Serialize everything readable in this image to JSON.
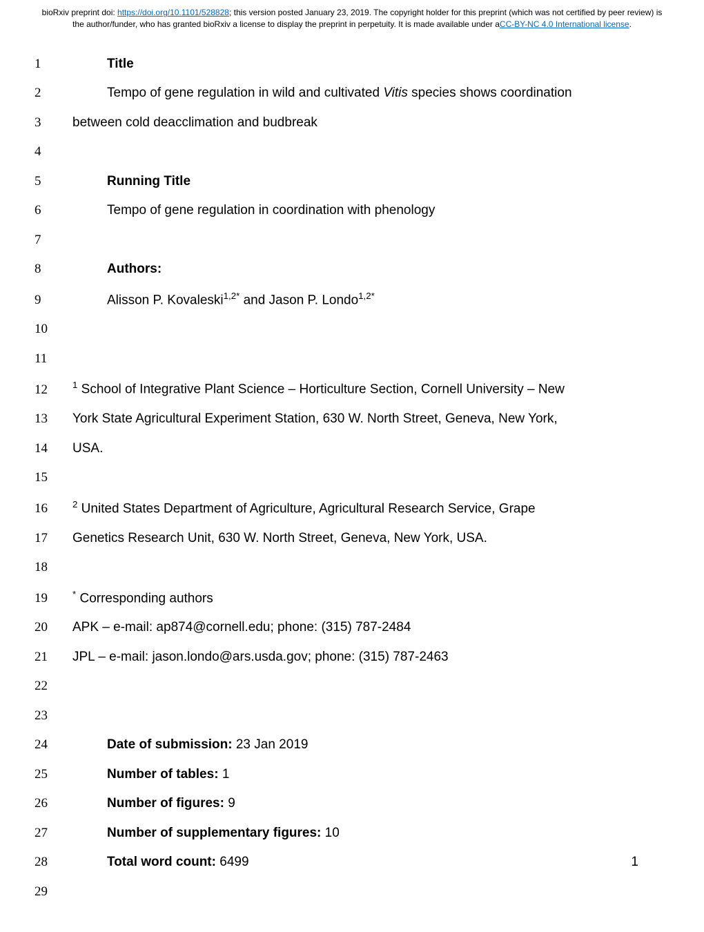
{
  "header": {
    "prefix": "bioRxiv preprint doi: ",
    "doi_url": "https://doi.org/10.1101/528828",
    "middle": "; this version posted January 23, 2019. The copyright holder for this preprint (which was not certified by peer review) is the author/funder, who has granted bioRxiv a license to display the preprint in perpetuity. It is made available under ",
    "license_prefix": "a",
    "license_text": "CC-BY-NC 4.0 International license",
    "license_suffix": "."
  },
  "lines": {
    "l1": "Title",
    "l2a": "Tempo of gene regulation in wild and cultivated ",
    "l2b": "Vitis",
    "l2c": " species shows coordination",
    "l3": "between cold deacclimation and budbreak",
    "l5": "Running Title",
    "l6": "Tempo of gene regulation in coordination with phenology",
    "l8": "Authors:",
    "l9a": "Alisson P. Kovaleski",
    "l9sup1": "1,2*",
    "l9b": " and Jason P. Londo",
    "l9sup2": "1,2*",
    "l12sup": "1",
    "l12": " School of Integrative Plant Science – Horticulture Section, Cornell University – New",
    "l13": "York State Agricultural Experiment Station, 630 W. North Street, Geneva, New York,",
    "l14": "USA.",
    "l16sup": "2",
    "l16": " United States Department of Agriculture, Agricultural Research Service, Grape",
    "l17": "Genetics Research Unit, 630 W. North Street, Geneva, New York, USA.",
    "l19sup": "*",
    "l19": " Corresponding authors",
    "l20": "APK – e-mail: ap874@cornell.edu; phone: (315) 787-2484",
    "l21": "JPL – e-mail: jason.londo@ars.usda.gov; phone: (315) 787-2463",
    "l24a": "Date of submission: ",
    "l24b": "23 Jan 2019",
    "l25a": "Number of tables: ",
    "l25b": "1",
    "l26a": "Number of figures: ",
    "l26b": "9",
    "l27a": "Number of supplementary figures: ",
    "l27b": "10",
    "l28a": "Total word count: ",
    "l28b": "6499"
  },
  "line_numbers": {
    "n1": "1",
    "n2": "2",
    "n3": "3",
    "n4": "4",
    "n5": "5",
    "n6": "6",
    "n7": "7",
    "n8": "8",
    "n9": "9",
    "n10": "10",
    "n11": "11",
    "n12": "12",
    "n13": "13",
    "n14": "14",
    "n15": "15",
    "n16": "16",
    "n17": "17",
    "n18": "18",
    "n19": "19",
    "n20": "20",
    "n21": "21",
    "n22": "22",
    "n23": "23",
    "n24": "24",
    "n25": "25",
    "n26": "26",
    "n27": "27",
    "n28": "28",
    "n29": "29"
  },
  "page_number": "1"
}
